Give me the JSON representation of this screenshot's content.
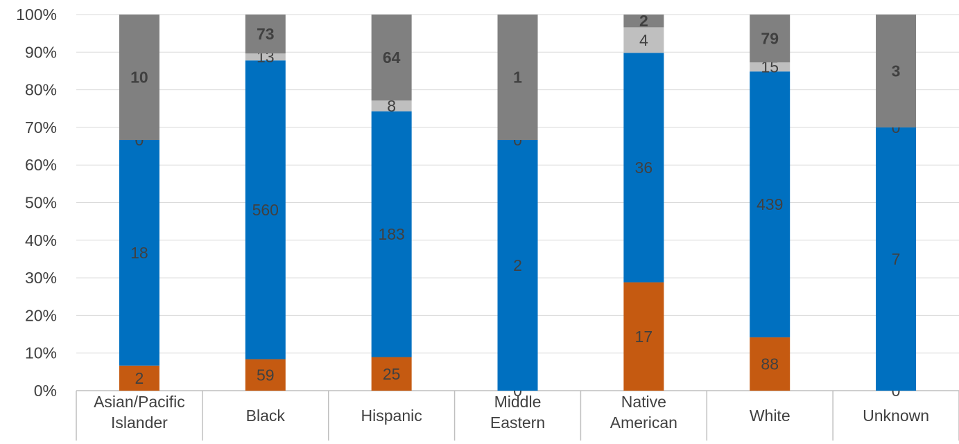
{
  "chart_data": {
    "type": "bar",
    "stacked": "percent",
    "categories": [
      "Asian/Pacific Islander",
      "Black",
      "Hispanic",
      "Middle Eastern",
      "Native American",
      "White",
      "Unknown"
    ],
    "category_lines": [
      [
        "Asian/Pacific",
        "Islander"
      ],
      [
        "Black"
      ],
      [
        "Hispanic"
      ],
      [
        "Middle",
        "Eastern"
      ],
      [
        "Native",
        "American"
      ],
      [
        "White"
      ],
      [
        "Unknown"
      ]
    ],
    "series": [
      {
        "values": [
          2,
          59,
          25,
          0,
          17,
          88,
          0
        ],
        "color": "#C55A11",
        "label_bold": false
      },
      {
        "values": [
          18,
          560,
          183,
          2,
          36,
          439,
          7
        ],
        "color": "#0070C0",
        "label_bold": false
      },
      {
        "values": [
          0,
          13,
          8,
          0,
          4,
          15,
          0
        ],
        "color": "#BFBFBF",
        "label_bold": false
      },
      {
        "values": [
          10,
          73,
          64,
          1,
          2,
          79,
          3
        ],
        "color": "#808080",
        "label_bold": true
      }
    ],
    "ylim": [
      0,
      1
    ],
    "y_ticks": [
      "0%",
      "10%",
      "20%",
      "30%",
      "40%",
      "50%",
      "60%",
      "70%",
      "80%",
      "90%",
      "100%"
    ],
    "grid": true,
    "legend": "none"
  }
}
